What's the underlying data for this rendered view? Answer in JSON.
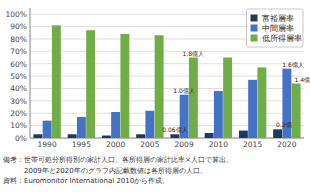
{
  "chart_data": {
    "type": "bar",
    "categories": [
      "1990",
      "1995",
      "2000",
      "2005",
      "2009",
      "2010",
      "2015",
      "2020"
    ],
    "series": [
      {
        "name": "富裕層率",
        "color": "#1F3864",
        "values": [
          3,
          3,
          2,
          3,
          3,
          4,
          6,
          7
        ]
      },
      {
        "name": "中間層率",
        "color": "#4472C4",
        "values": [
          14,
          17,
          21,
          22,
          35,
          38,
          47,
          56
        ]
      },
      {
        "name": "低所得層率",
        "color": "#70AD47",
        "values": [
          91,
          87,
          84,
          83,
          65,
          65,
          57,
          44
        ]
      }
    ],
    "ylim": [
      0,
      105
    ],
    "yticks": [
      {
        "value": 0,
        "label": "0%"
      },
      {
        "value": 10,
        "label": "10%"
      },
      {
        "value": 20,
        "label": "20%"
      },
      {
        "value": 30,
        "label": "30%"
      },
      {
        "value": 40,
        "label": "40%"
      },
      {
        "value": 50,
        "label": "50%"
      },
      {
        "value": 60,
        "label": "60%"
      },
      {
        "value": 70,
        "label": "70%"
      },
      {
        "value": 80,
        "label": "80%"
      },
      {
        "value": 90,
        "label": "90%"
      },
      {
        "value": 100,
        "label": "100%"
      }
    ],
    "grid": true,
    "legend": "upper right",
    "annotations": [
      {
        "text": "1.8億人",
        "category": "2009",
        "series": "低所得層率"
      },
      {
        "text": "1.0億人",
        "category": "2009",
        "series": "中間層率"
      },
      {
        "text": "0.06億人",
        "category": "2009",
        "series": "富裕層率"
      },
      {
        "text": "1.4億",
        "category": "2020",
        "series": "低所得層率"
      },
      {
        "text": "1.6億人",
        "category": "2020",
        "series": "中間層率"
      },
      {
        "text": "0.2億",
        "category": "2020",
        "series": "富裕層率"
      }
    ],
    "notes": [
      "備考：世帯可処分所得別の家計人口。各所得層の家計比率×人口で算出。",
      "　　　2009年と2020年のグラフ内記載数値は各所得層の人口。"
    ],
    "source": "資料：Euromonitor International 2010から作成。"
  }
}
